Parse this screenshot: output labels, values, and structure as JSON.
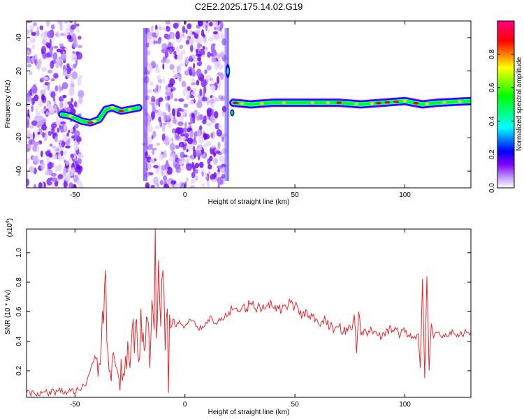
{
  "figure": {
    "title": "C2E2.2025.175.14.02.G19"
  },
  "chart_data": [
    {
      "type": "heatmap",
      "xlabel": "Height of straight line (km)",
      "ylabel": "Frequency (Hz)",
      "xlim": [
        -72,
        130
      ],
      "ylim": [
        -50,
        50
      ],
      "x_ticks": [
        "-50",
        "0",
        "50",
        "100"
      ],
      "x_tick_values": [
        -50,
        0,
        50,
        100
      ],
      "y_ticks": [
        "-40",
        "-20",
        "0",
        "20",
        "40"
      ],
      "y_tick_values": [
        -40,
        -20,
        0,
        20,
        40
      ],
      "grid": false,
      "colorbar": {
        "label": "Normalized spectral amplitude",
        "range": [
          0,
          1
        ],
        "ticks": [
          "0.0",
          "0.2",
          "0.4",
          "0.6",
          "0.8"
        ],
        "tick_values": [
          0.0,
          0.2,
          0.4,
          0.6,
          0.8
        ],
        "colors": [
          "#ffffff",
          "#8000ff",
          "#0000ff",
          "#00ffff",
          "#00ff00",
          "#ffff00",
          "#ff0000",
          "#ff0080"
        ]
      },
      "noise_regions_km": [
        [
          -72,
          -47
        ],
        [
          -18,
          18
        ]
      ],
      "ridge": [
        {
          "x": -56,
          "f": -6
        },
        {
          "x": -52,
          "f": -7
        },
        {
          "x": -47,
          "f": -10
        },
        {
          "x": -43,
          "f": -11
        },
        {
          "x": -39,
          "f": -9
        },
        {
          "x": -36,
          "f": -3
        },
        {
          "x": -33,
          "f": -2
        },
        {
          "x": -29,
          "f": -4
        },
        {
          "x": -25,
          "f": -3
        },
        {
          "x": -21,
          "f": -2
        },
        {
          "x": 22,
          "f": 1
        },
        {
          "x": 30,
          "f": 0
        },
        {
          "x": 40,
          "f": 1
        },
        {
          "x": 50,
          "f": 1
        },
        {
          "x": 60,
          "f": 1
        },
        {
          "x": 70,
          "f": 1
        },
        {
          "x": 80,
          "f": 0
        },
        {
          "x": 90,
          "f": 1
        },
        {
          "x": 100,
          "f": 2
        },
        {
          "x": 108,
          "f": 0
        },
        {
          "x": 115,
          "f": 1
        },
        {
          "x": 130,
          "f": 2
        }
      ]
    },
    {
      "type": "line",
      "xlabel": "Height of straight line (km)",
      "ylabel": "SNR (10 * v/v)",
      "y_multiplier": "(x10",
      "y_multiplier_exp": "4",
      "y_multiplier_close": ")",
      "xlim": [
        -72,
        130
      ],
      "ylim": [
        0.02,
        1.16
      ],
      "x_ticks": [
        "-50",
        "0",
        "50",
        "100"
      ],
      "x_tick_values": [
        -50,
        0,
        50,
        100
      ],
      "y_ticks": [
        "0.2",
        "0.4",
        "0.6",
        "0.8",
        "1.0"
      ],
      "y_tick_values": [
        0.2,
        0.4,
        0.6,
        0.8,
        1.0
      ],
      "grid": false,
      "series": [
        {
          "color": "#e8282e",
          "x": [
            -72,
            -65,
            -58,
            -52,
            -48,
            -45,
            -43,
            -41,
            -39,
            -38,
            -37,
            -36,
            -35.5,
            -35,
            -34,
            -33,
            -32,
            -31,
            -30,
            -29,
            -28,
            -27,
            -26,
            -25,
            -24,
            -23,
            -22,
            -21,
            -20,
            -19,
            -18,
            -17,
            -16,
            -15,
            -14,
            -13.5,
            -13,
            -12,
            -11,
            -10,
            -9,
            -8,
            -7.5,
            -7,
            -6,
            -5,
            -4,
            -2,
            0,
            2,
            4,
            6,
            8,
            10,
            12,
            14,
            16,
            18,
            20,
            22,
            24,
            26,
            28,
            30,
            32,
            34,
            36,
            38,
            40,
            42,
            44,
            46,
            48,
            50,
            52,
            54,
            56,
            58,
            60,
            62,
            64,
            66,
            68,
            70,
            72,
            74,
            76,
            77,
            78,
            79,
            80,
            82,
            84,
            86,
            88,
            90,
            92,
            94,
            96,
            98,
            100,
            102,
            104,
            106,
            107,
            108,
            109,
            110,
            111,
            112,
            113,
            114,
            116,
            118,
            120,
            122,
            124,
            126,
            128,
            130
          ],
          "y": [
            0.05,
            0.05,
            0.06,
            0.06,
            0.07,
            0.1,
            0.2,
            0.3,
            0.25,
            0.38,
            0.52,
            0.88,
            0.4,
            0.32,
            0.2,
            0.3,
            0.28,
            0.22,
            0.15,
            0.28,
            0.18,
            0.3,
            0.4,
            0.22,
            0.48,
            0.32,
            0.55,
            0.26,
            0.62,
            0.46,
            0.36,
            0.55,
            0.22,
            0.68,
            0.48,
            1.16,
            0.42,
            0.95,
            0.5,
            0.88,
            0.34,
            0.62,
            0.05,
            0.58,
            0.5,
            0.55,
            0.5,
            0.52,
            0.5,
            0.55,
            0.54,
            0.48,
            0.5,
            0.52,
            0.57,
            0.52,
            0.54,
            0.56,
            0.6,
            0.62,
            0.6,
            0.63,
            0.62,
            0.66,
            0.62,
            0.64,
            0.62,
            0.66,
            0.63,
            0.64,
            0.61,
            0.63,
            0.66,
            0.64,
            0.58,
            0.6,
            0.56,
            0.57,
            0.55,
            0.53,
            0.54,
            0.5,
            0.48,
            0.5,
            0.46,
            0.47,
            0.48,
            0.58,
            0.32,
            0.6,
            0.44,
            0.48,
            0.46,
            0.47,
            0.44,
            0.46,
            0.48,
            0.46,
            0.48,
            0.44,
            0.46,
            0.43,
            0.42,
            0.45,
            0.22,
            0.82,
            0.15,
            0.84,
            0.2,
            0.52,
            0.42,
            0.46,
            0.44,
            0.43,
            0.44,
            0.46,
            0.45,
            0.44,
            0.46,
            0.46
          ]
        }
      ]
    }
  ]
}
